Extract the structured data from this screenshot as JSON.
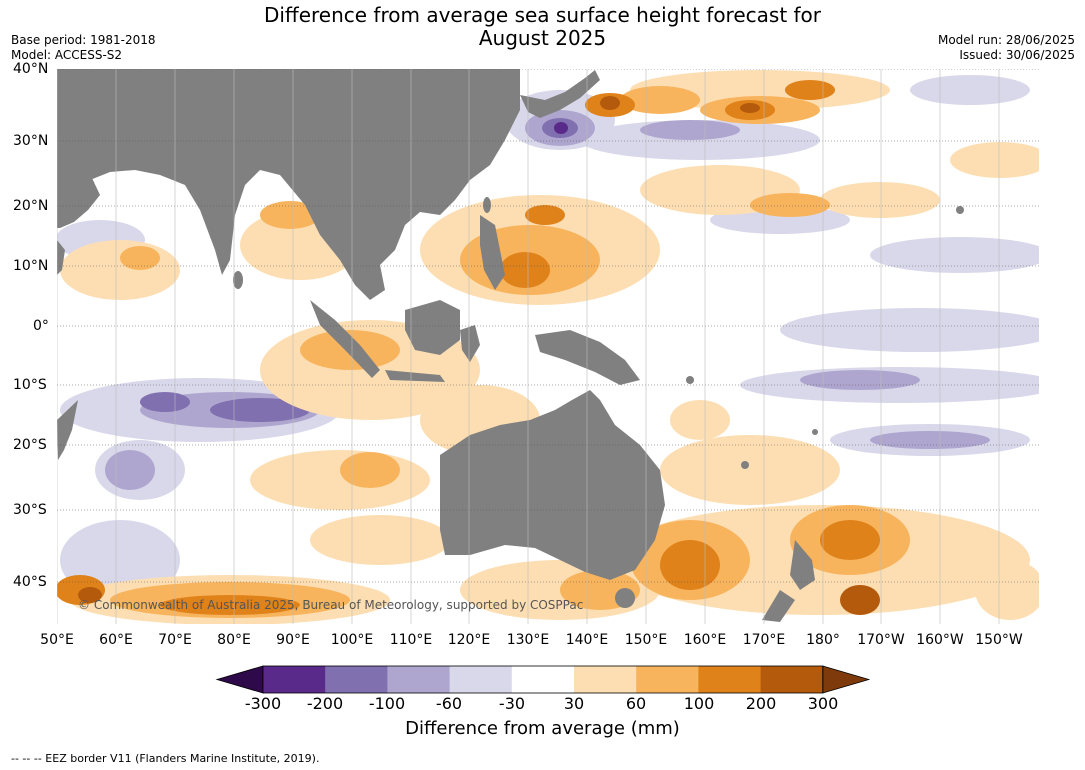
{
  "title_line1": "Difference from average sea surface height forecast for",
  "title_line2": "August 2025",
  "meta_left": {
    "base_period": "Base period: 1981-2018",
    "model": "Model: ACCESS-S2"
  },
  "meta_right": {
    "model_run": "Model run: 28/06/2025",
    "issued": "Issued: 30/06/2025"
  },
  "map": {
    "lat_labels": [
      "40°N",
      "30°N",
      "20°N",
      "10°N",
      "0°",
      "10°S",
      "20°S",
      "30°S",
      "40°S"
    ],
    "lon_labels": [
      "50°E",
      "60°E",
      "70°E",
      "80°E",
      "90°E",
      "100°E",
      "110°E",
      "120°E",
      "130°E",
      "140°E",
      "150°E",
      "160°E",
      "170°E",
      "180°",
      "170°W",
      "160°W",
      "150°W"
    ],
    "copyright": "© Commonwealth of Australia 2025, Bureau of Meteorology, supported by COSPPac",
    "land_color": "#808080",
    "grid_style": "dotted"
  },
  "colorbar": {
    "title": "Difference from average (mm)",
    "tick_labels": [
      "-300",
      "-200",
      "-100",
      "-60",
      "-30",
      "30",
      "60",
      "100",
      "200",
      "300"
    ],
    "colors": [
      "#2e0a4a",
      "#5a2a8a",
      "#8070b0",
      "#aea6cf",
      "#d9d8ea",
      "#ffffff",
      "#fddeb2",
      "#f8b45d",
      "#e0821a",
      "#b45a0c",
      "#7e3a0a"
    ],
    "extend": "both"
  },
  "footnote": "--  --  -- EEZ border V11 (Flanders Marine Institute, 2019)."
}
